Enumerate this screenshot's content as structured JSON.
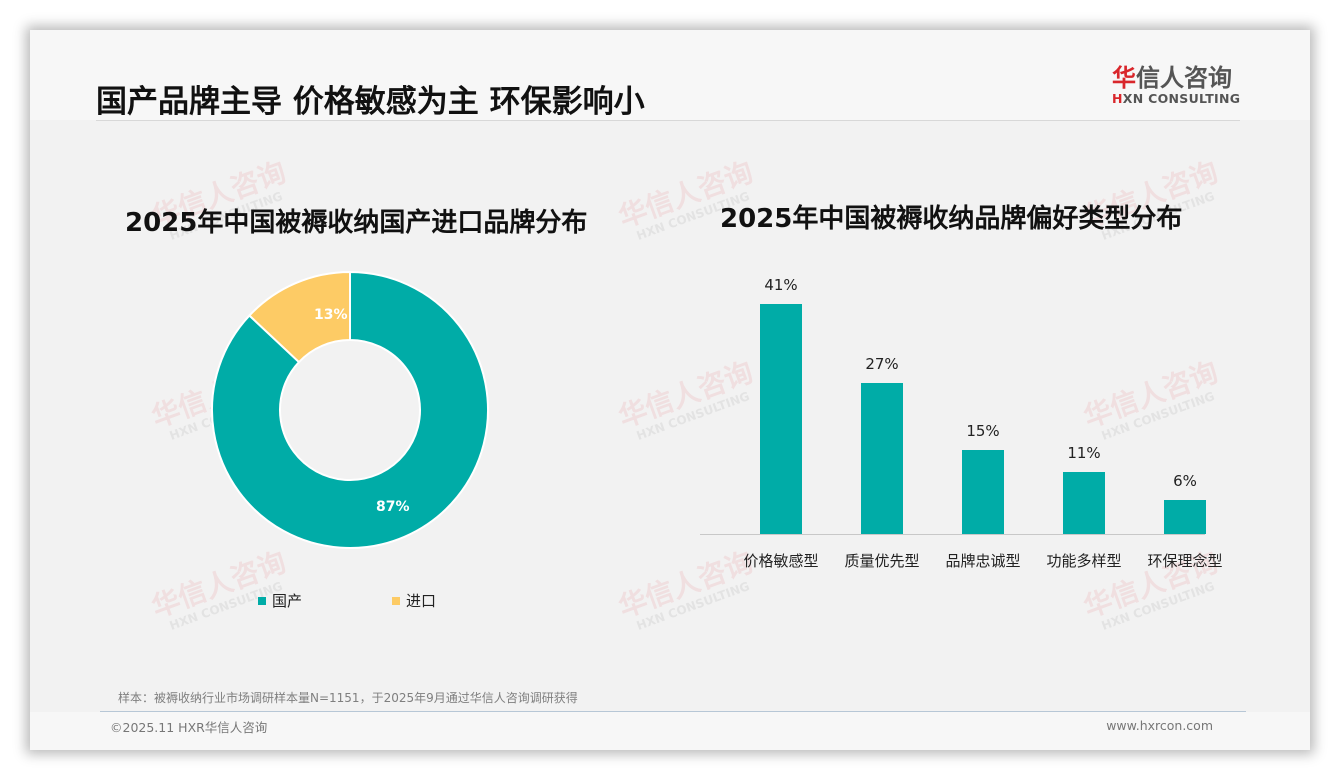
{
  "header": {
    "title": "国产品牌主导 价格敏感为主 环保影响小",
    "logo": {
      "cn_first": "华",
      "cn_rest": "信人咨询",
      "en_mark": "H",
      "en_rest": "XN CONSULTING"
    }
  },
  "watermark": {
    "cn": "华信人咨询",
    "en": "HXN CONSULTING"
  },
  "colors": {
    "teal": "#00aca7",
    "yellow": "#fdcb65",
    "brand_red": "#d9262b"
  },
  "chart_data": [
    {
      "type": "pie",
      "variant": "donut",
      "title": "2025年中国被褥收纳国产进口品牌分布",
      "categories": [
        "国产",
        "进口"
      ],
      "values": [
        87,
        13
      ],
      "labels": [
        "87%",
        "13%"
      ],
      "colors": [
        "#00aca7",
        "#fdcb65"
      ],
      "legend_position": "bottom"
    },
    {
      "type": "bar",
      "title": "2025年中国被褥收纳品牌偏好类型分布",
      "categories": [
        "价格敏感型",
        "质量优先型",
        "品牌忠诚型",
        "功能多样型",
        "环保理念型"
      ],
      "values": [
        41,
        27,
        15,
        11,
        6
      ],
      "labels": [
        "41%",
        "27%",
        "15%",
        "11%",
        "6%"
      ],
      "unit": "%",
      "xlabel": "",
      "ylabel": "",
      "grid": false,
      "color": "#00aca7"
    }
  ],
  "donut": {
    "title": "2025年中国被褥收纳国产进口品牌分布",
    "legend": [
      {
        "label": "国产",
        "color": "#00aca7"
      },
      {
        "label": "进口",
        "color": "#fdcb65"
      }
    ],
    "slice_labels": {
      "domestic": "87%",
      "imported": "13%"
    }
  },
  "bars": {
    "title": "2025年中国被褥收纳品牌偏好类型分布"
  },
  "footer": {
    "note": "样本：被褥收纳行业市场调研样本量N=1151，于2025年9月通过华信人咨询调研获得",
    "copyright": "©2025.11 HXR华信人咨询",
    "website": "www.hxrcon.com"
  }
}
